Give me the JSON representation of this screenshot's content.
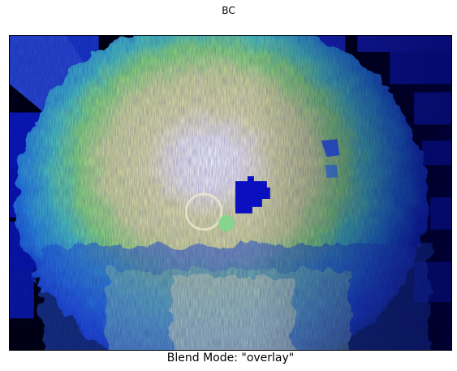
{
  "figure": {
    "title": "BC",
    "xlabel": "Blend Mode: \"overlay\""
  },
  "image": {
    "description_icon": "shaded-relief-terrain-image",
    "colormap": [
      "#000000",
      "#0000c8",
      "#2a5ad8",
      "#3ab8e0",
      "#5fd6a0",
      "#8fe07a",
      "#e8e6a0",
      "#f4f0e8",
      "#ffffff"
    ],
    "background_color": "#000000"
  }
}
